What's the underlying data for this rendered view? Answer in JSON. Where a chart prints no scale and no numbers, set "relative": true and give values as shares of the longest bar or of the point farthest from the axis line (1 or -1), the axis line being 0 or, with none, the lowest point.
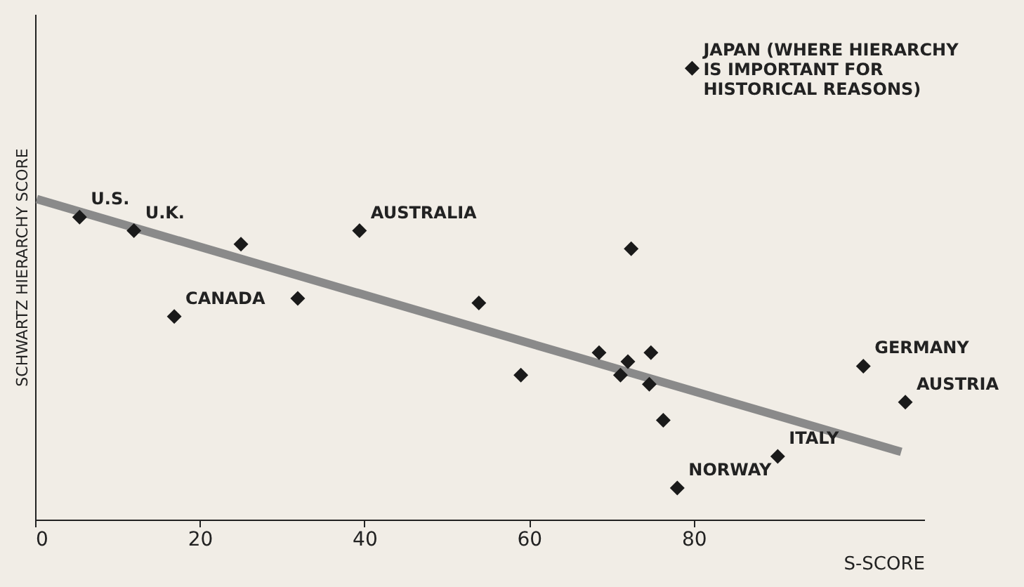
{
  "chart_data": {
    "type": "scatter",
    "relative": true,
    "xlabel": "S-SCORE",
    "ylabel": "SCHWARTZ HIERARCHY SCORE",
    "xlim": [
      0,
      108
    ],
    "xticks": [
      0,
      20,
      40,
      60,
      80
    ],
    "grid": false,
    "series": [
      {
        "marker": "diamond",
        "color": "#1a1a1a",
        "x": [
          5.4,
          12,
          25,
          16.9,
          31.9,
          39.4,
          53.9,
          59,
          68.5,
          72.4,
          74.8,
          72,
          71.1,
          74.6,
          76.3,
          78,
          90.2,
          100.6,
          105.7,
          79.8
        ],
        "values": [
          0.67,
          0.64,
          0.61,
          0.45,
          0.49,
          0.64,
          0.48,
          0.32,
          0.37,
          0.6,
          0.37,
          0.35,
          0.32,
          0.3,
          0.22,
          0.07,
          0.14,
          0.34,
          0.26,
          1
        ]
      },
      {
        "type": "line",
        "color": "#8a8a8a",
        "x": [
          0.2,
          105.2
        ],
        "values": [
          0.71,
          0.15
        ]
      }
    ],
    "annotations": [
      {
        "text": "U.S.",
        "x": 5.4,
        "y": 0.67
      },
      {
        "text": "U.K.",
        "x": 12,
        "y": 0.64
      },
      {
        "text": "CANADA",
        "x": 16.9,
        "y": 0.45
      },
      {
        "text": "AUSTRALIA",
        "x": 39.4,
        "y": 0.64
      },
      {
        "text": "NORWAY",
        "x": 78,
        "y": 0.07
      },
      {
        "text": "ITALY",
        "x": 90.2,
        "y": 0.14
      },
      {
        "text": "GERMANY",
        "x": 100.6,
        "y": 0.34
      },
      {
        "text": "AUSTRIA",
        "x": 105.7,
        "y": 0.26
      },
      {
        "text": "JAPAN (WHERE HIERARCHY IS IMPORTANT FOR HISTORICAL REASONS)",
        "x": 79.8,
        "y": 1
      }
    ]
  }
}
